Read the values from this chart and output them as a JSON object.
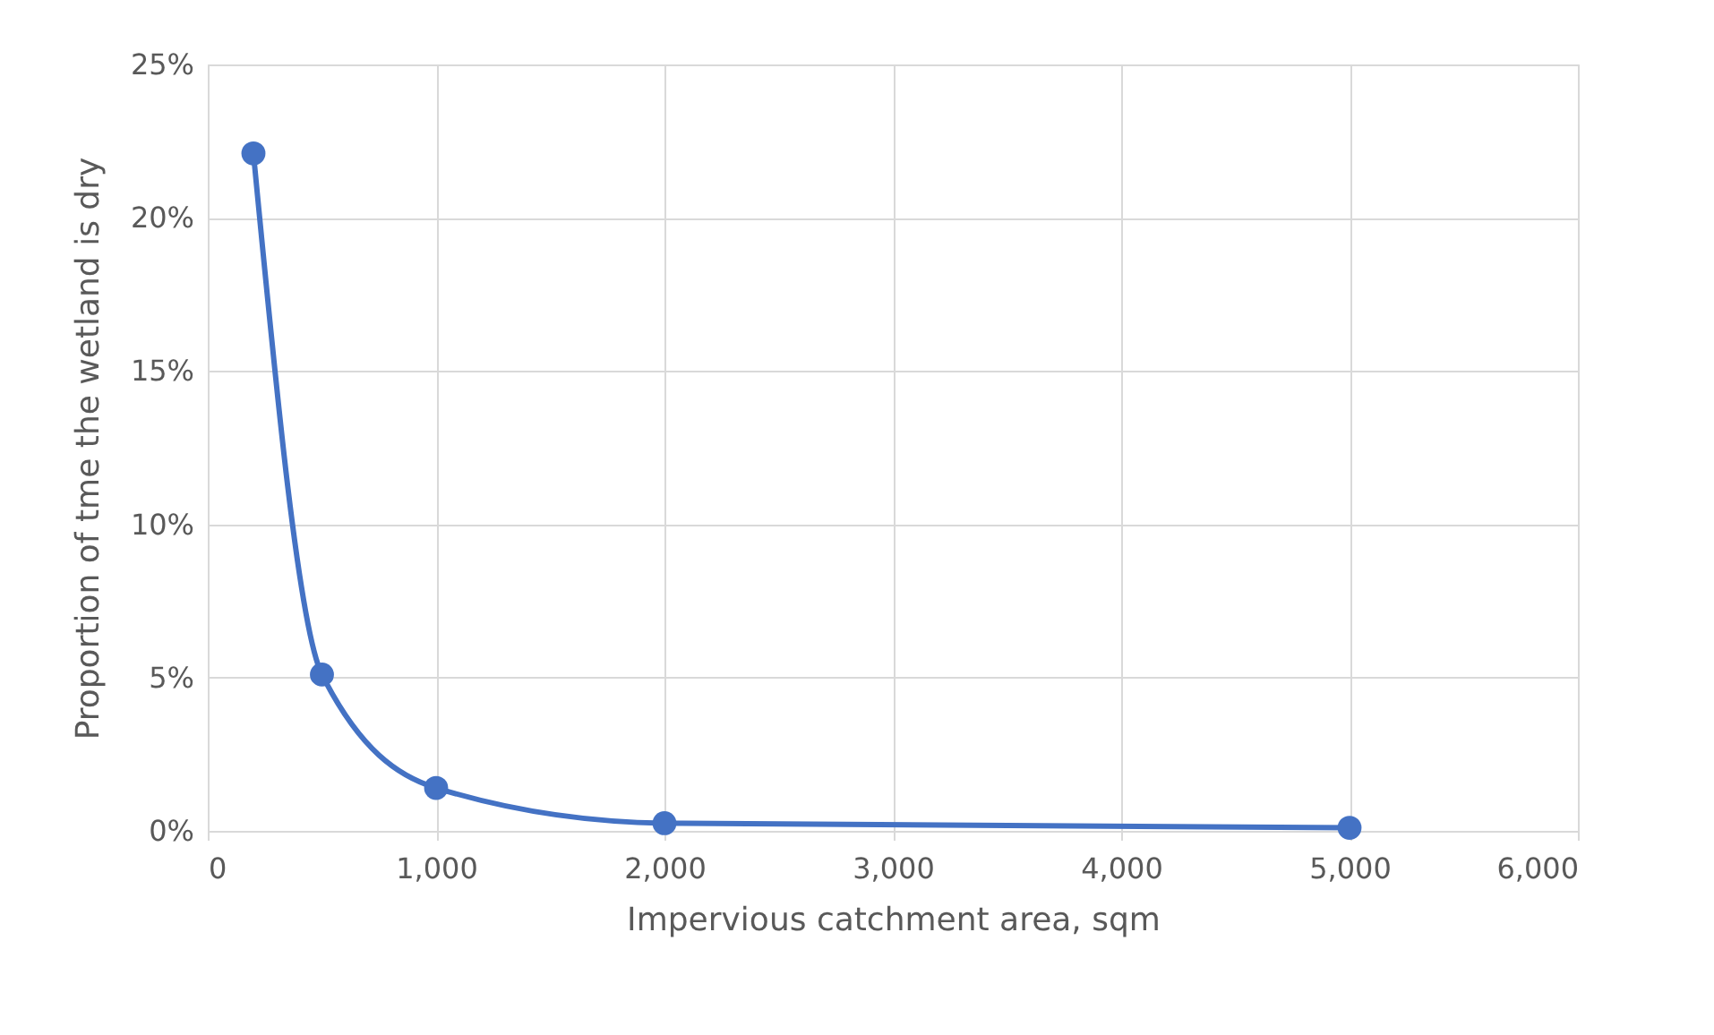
{
  "chart_data": {
    "type": "line",
    "xlabel": "Impervious catchment area, sqm",
    "ylabel": "Proportion of tme the wetland is dry",
    "x": [
      200,
      500,
      1000,
      2000,
      5000
    ],
    "series": [
      {
        "color": "#4472c4",
        "values": [
          22.1,
          5.1,
          1.4,
          0.25,
          0.1
        ]
      }
    ],
    "xlim": [
      0,
      6000
    ],
    "xticks": [
      {
        "value": 0,
        "label": "0"
      },
      {
        "value": 1000,
        "label": "1,000"
      },
      {
        "value": 2000,
        "label": "2,000"
      },
      {
        "value": 3000,
        "label": "3,000"
      },
      {
        "value": 4000,
        "label": "4,000"
      },
      {
        "value": 5000,
        "label": "5,000"
      },
      {
        "value": 6000,
        "label": "6,000"
      }
    ],
    "ylim": [
      0,
      25
    ],
    "yticks": [
      {
        "value": 0,
        "label": "0%"
      },
      {
        "value": 5,
        "label": "5%"
      },
      {
        "value": 10,
        "label": "10%"
      },
      {
        "value": 15,
        "label": "15%"
      },
      {
        "value": 20,
        "label": "20%"
      },
      {
        "value": 25,
        "label": "25%"
      }
    ],
    "grid": true,
    "marker": "circle",
    "line_style": "solid"
  }
}
